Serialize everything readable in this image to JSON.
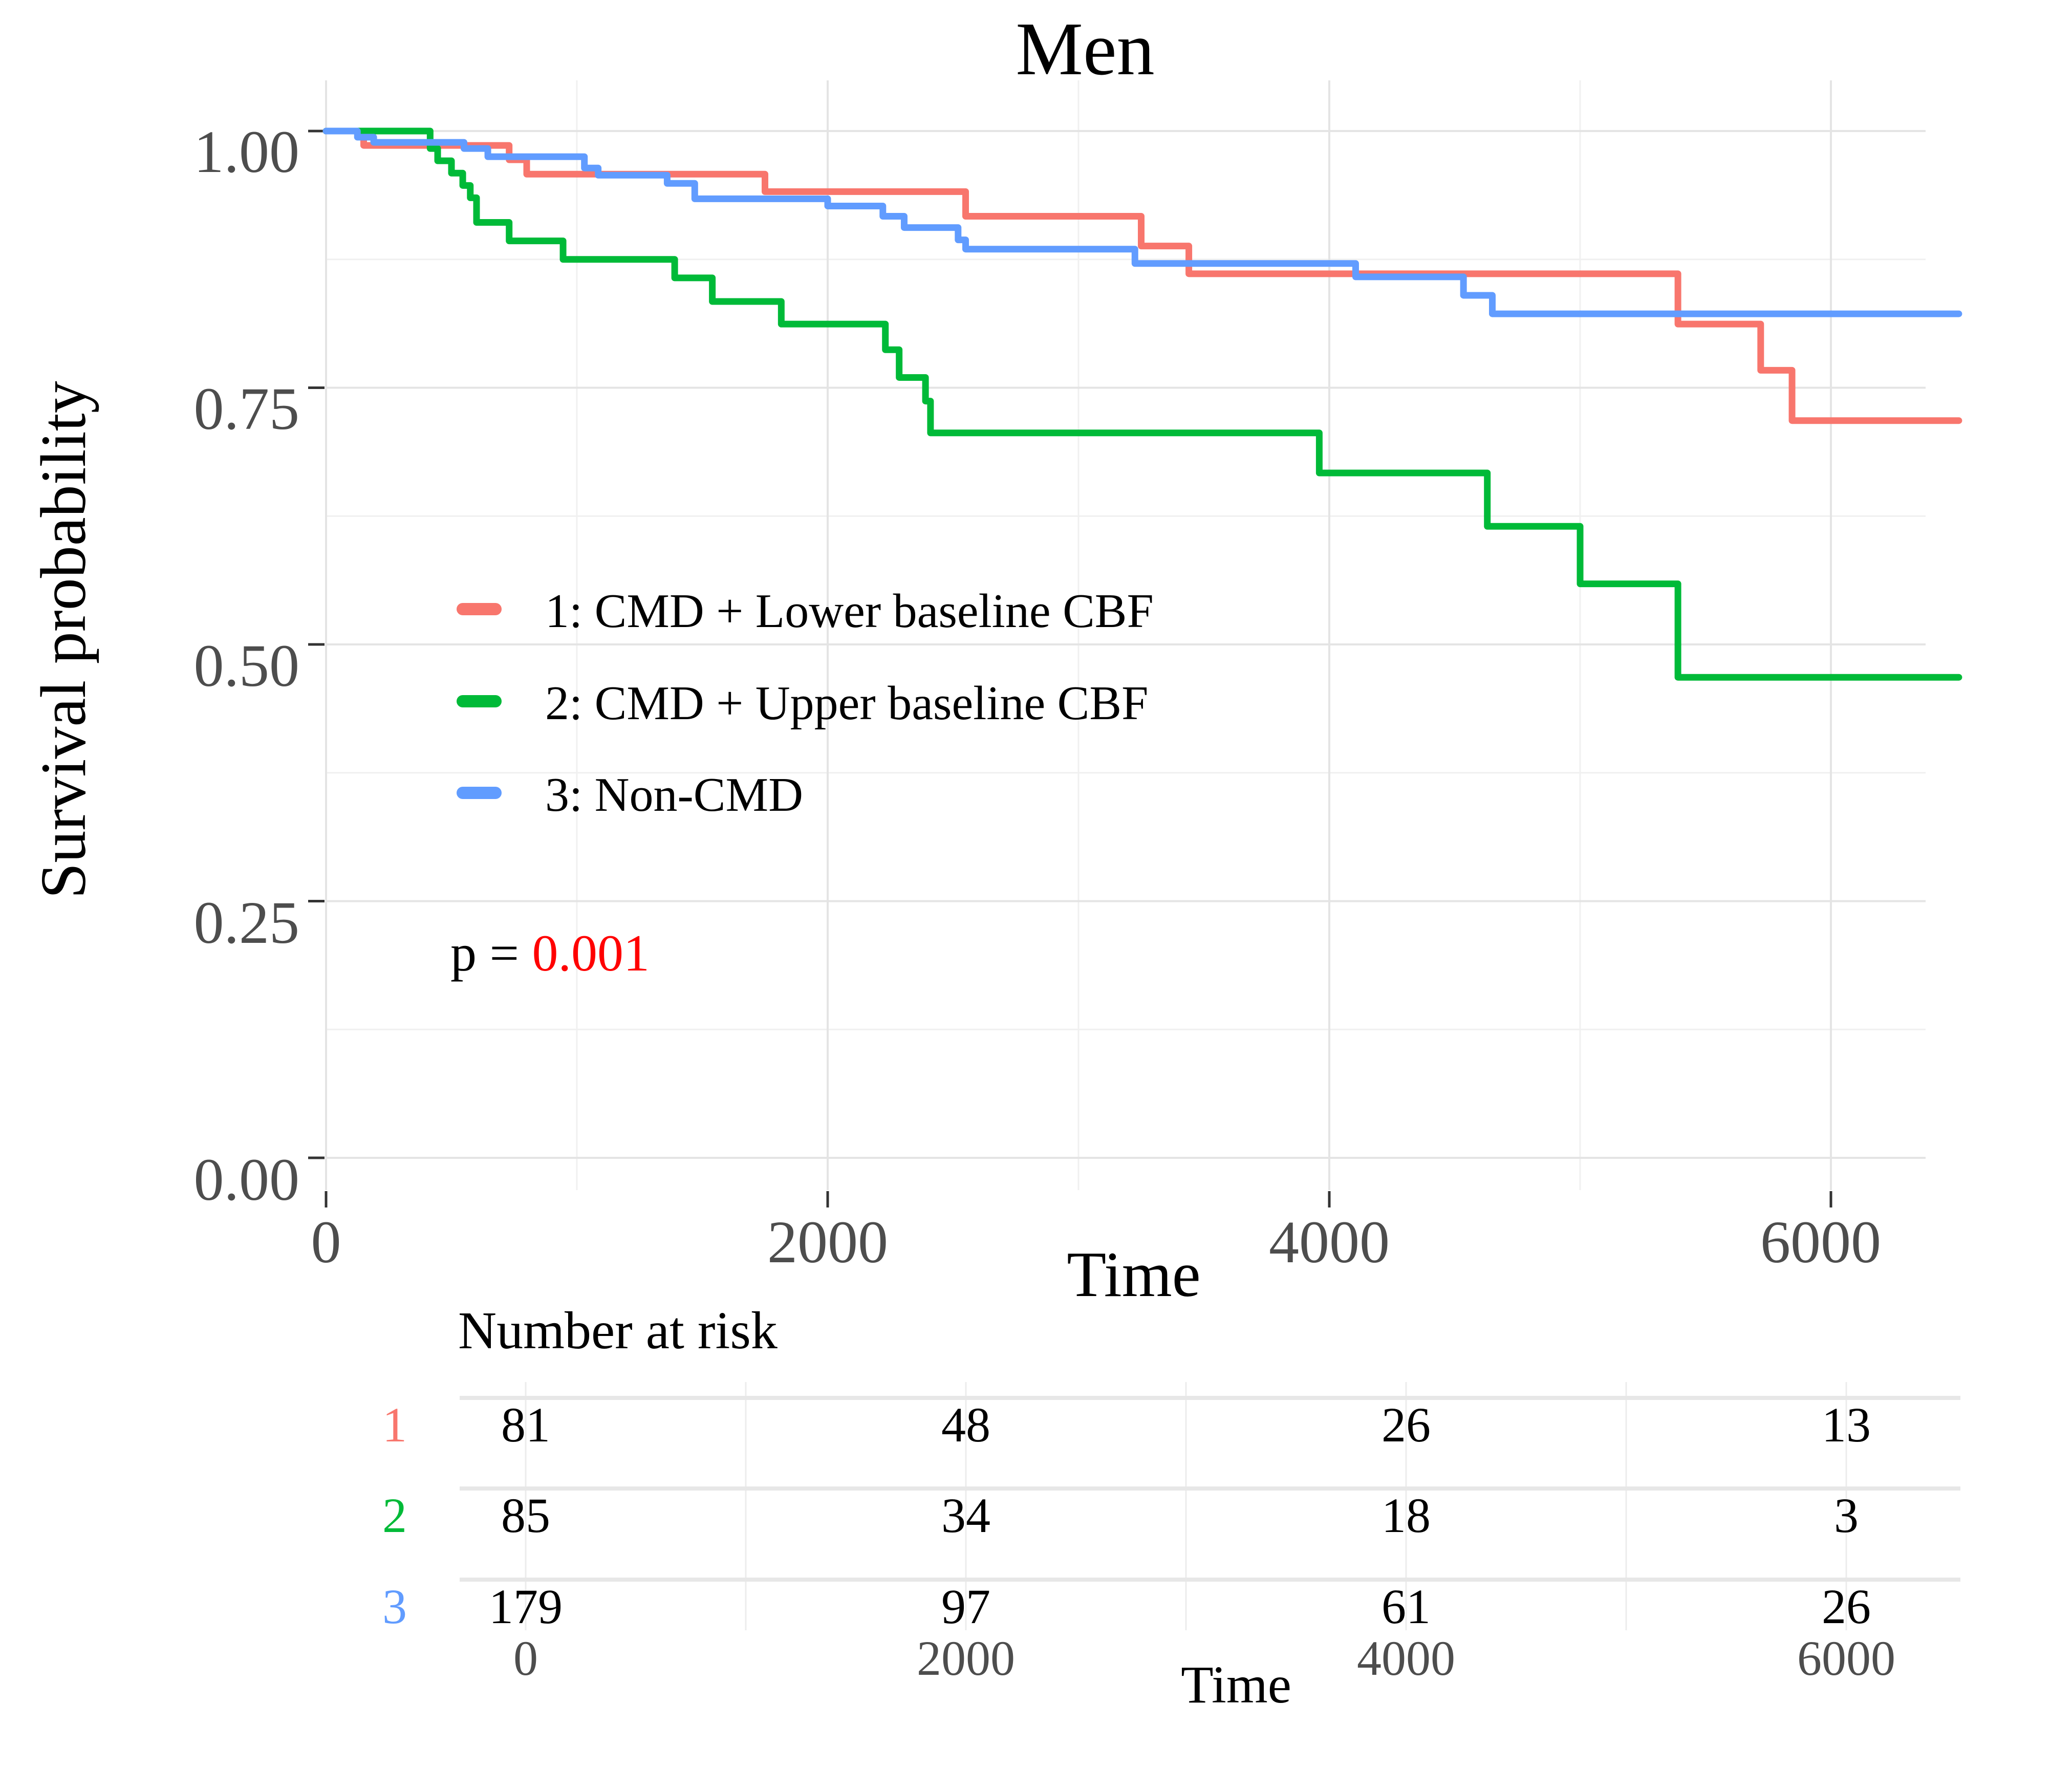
{
  "title": "Men",
  "y_axis": {
    "label": "Survival probability",
    "ticks": [
      "1.00",
      "0.75",
      "0.50",
      "0.25",
      "0.00"
    ]
  },
  "x_axis": {
    "label": "Time",
    "ticks": [
      "0",
      "2000",
      "4000",
      "6000"
    ]
  },
  "legend": {
    "items": [
      {
        "label": "1: CMD + Lower baseline CBF",
        "color": "#F8766D"
      },
      {
        "label": "2: CMD + Upper baseline CBF",
        "color": "#00BA38"
      },
      {
        "label": "3: Non-CMD",
        "color": "#619CFF"
      }
    ]
  },
  "p_value": {
    "prefix": "p = ",
    "value": "0.001",
    "value_color": "#FF0000"
  },
  "risk_table": {
    "header": "Number at risk",
    "time_label": "Time",
    "time_ticks": [
      "0",
      "2000",
      "4000",
      "6000"
    ],
    "rows": [
      {
        "label": "1",
        "color": "#F8766D",
        "values": [
          "81",
          "48",
          "26",
          "13"
        ]
      },
      {
        "label": "2",
        "color": "#00BA38",
        "values": [
          "85",
          "34",
          "18",
          "3"
        ]
      },
      {
        "label": "3",
        "color": "#619CFF",
        "values": [
          "179",
          "97",
          "61",
          "26"
        ]
      }
    ]
  },
  "chart_data": {
    "type": "line",
    "subtype": "kaplan-meier-step",
    "title": "Men",
    "xlabel": "Time",
    "ylabel": "Survival probability",
    "xlim": [
      0,
      6800
    ],
    "ylim": [
      0,
      1.0
    ],
    "x_ticks": [
      0,
      2000,
      4000,
      6000
    ],
    "x_minor_ticks": [
      1000,
      3000,
      5000
    ],
    "y_ticks": [
      0,
      0.25,
      0.5,
      0.75,
      1.0
    ],
    "y_minor_ticks": [
      0.125,
      0.375,
      0.625,
      0.875
    ],
    "grid": true,
    "legend_position": "inside-left",
    "p_annotation": "p = 0.001",
    "series": [
      {
        "name": "1: CMD + Lower baseline CBF",
        "color": "#F8766D",
        "points": [
          [
            0,
            1.0
          ],
          [
            150,
            0.986
          ],
          [
            730,
            0.972
          ],
          [
            800,
            0.958
          ],
          [
            1750,
            0.941
          ],
          [
            2550,
            0.917
          ],
          [
            3250,
            0.888
          ],
          [
            3440,
            0.861
          ],
          [
            5390,
            0.812
          ],
          [
            5720,
            0.767
          ],
          [
            5845,
            0.718
          ],
          [
            6510,
            0.718
          ]
        ]
      },
      {
        "name": "2: CMD + Upper baseline CBF",
        "color": "#00BA38",
        "points": [
          [
            0,
            1.0
          ],
          [
            415,
            0.983
          ],
          [
            445,
            0.971
          ],
          [
            500,
            0.959
          ],
          [
            545,
            0.947
          ],
          [
            575,
            0.935
          ],
          [
            600,
            0.911
          ],
          [
            730,
            0.893
          ],
          [
            945,
            0.875
          ],
          [
            1390,
            0.857
          ],
          [
            1540,
            0.834
          ],
          [
            1815,
            0.812
          ],
          [
            2230,
            0.787
          ],
          [
            2285,
            0.76
          ],
          [
            2390,
            0.737
          ],
          [
            2410,
            0.706
          ],
          [
            3960,
            0.667
          ],
          [
            4630,
            0.615
          ],
          [
            5000,
            0.559
          ],
          [
            5390,
            0.468
          ],
          [
            6510,
            0.468
          ]
        ]
      },
      {
        "name": "3: Non-CMD",
        "color": "#619CFF",
        "points": [
          [
            0,
            1.0
          ],
          [
            125,
            0.994
          ],
          [
            190,
            0.989
          ],
          [
            550,
            0.983
          ],
          [
            645,
            0.975
          ],
          [
            1030,
            0.964
          ],
          [
            1085,
            0.957
          ],
          [
            1360,
            0.949
          ],
          [
            1470,
            0.934
          ],
          [
            2000,
            0.927
          ],
          [
            2220,
            0.917
          ],
          [
            2305,
            0.906
          ],
          [
            2520,
            0.894
          ],
          [
            2550,
            0.885
          ],
          [
            3225,
            0.871
          ],
          [
            4105,
            0.858
          ],
          [
            4535,
            0.84
          ],
          [
            4650,
            0.822
          ],
          [
            6510,
            0.822
          ]
        ]
      }
    ],
    "number_at_risk": {
      "times": [
        0,
        2000,
        4000,
        6000
      ],
      "groups": [
        {
          "name": "1",
          "counts": [
            81,
            48,
            26,
            13
          ]
        },
        {
          "name": "2",
          "counts": [
            85,
            34,
            18,
            3
          ]
        },
        {
          "name": "3",
          "counts": [
            179,
            97,
            61,
            26
          ]
        }
      ]
    }
  }
}
